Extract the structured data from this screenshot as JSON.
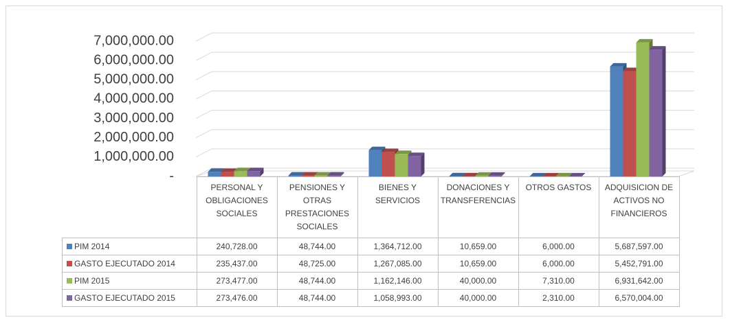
{
  "chart_data": {
    "type": "bar3d",
    "categories": [
      "PERSONAL Y OBLIGACIONES SOCIALES",
      "PENSIONES Y OTRAS PRESTACIONES SOCIALES",
      "BIENES Y SERVICIOS",
      "DONACIONES Y TRANSFERENCIAS",
      "OTROS GASTOS",
      "ADQUISICION DE ACTIVOS NO FINANCIEROS"
    ],
    "series": [
      {
        "name": "PIM 2014",
        "color": "#4f81bd",
        "values": [
          240728,
          48744,
          1364712,
          10659,
          6000,
          5687597
        ],
        "value_labels": [
          "240,728.00",
          "48,744.00",
          "1,364,712.00",
          "10,659.00",
          "6,000.00",
          "5,687,597.00"
        ]
      },
      {
        "name": "GASTO EJECUTADO 2014",
        "color": "#c0504d",
        "values": [
          235437,
          48725,
          1267085,
          10659,
          6000,
          5452791
        ],
        "value_labels": [
          "235,437.00",
          "48,725.00",
          "1,267,085.00",
          "10,659.00",
          "6,000.00",
          "5,452,791.00"
        ]
      },
      {
        "name": "PIM 2015",
        "color": "#9bbb59",
        "values": [
          273477,
          48744,
          1162146,
          40000,
          7310,
          6931642
        ],
        "value_labels": [
          "273,477.00",
          "48,744.00",
          "1,162,146.00",
          "40,000.00",
          "7,310.00",
          "6,931,642.00"
        ]
      },
      {
        "name": "GASTO EJECUTADO 2015",
        "color": "#8064a2",
        "values": [
          273476,
          48744,
          1058993,
          40000,
          2310,
          6570004
        ],
        "value_labels": [
          "273,476.00",
          "48,744.00",
          "1,058,993.00",
          "40,000.00",
          "2,310.00",
          "6,570,004.00"
        ]
      }
    ],
    "ylim": [
      0,
      7000000
    ],
    "yticks": [
      {
        "value": 0,
        "label": "-"
      },
      {
        "value": 1000000,
        "label": "1,000,000.00"
      },
      {
        "value": 2000000,
        "label": "2,000,000.00"
      },
      {
        "value": 3000000,
        "label": "3,000,000.00"
      },
      {
        "value": 4000000,
        "label": "4,000,000.00"
      },
      {
        "value": 5000000,
        "label": "5,000,000.00"
      },
      {
        "value": 6000000,
        "label": "6,000,000.00"
      },
      {
        "value": 7000000,
        "label": "7,000,000.00"
      }
    ],
    "grid": true
  }
}
